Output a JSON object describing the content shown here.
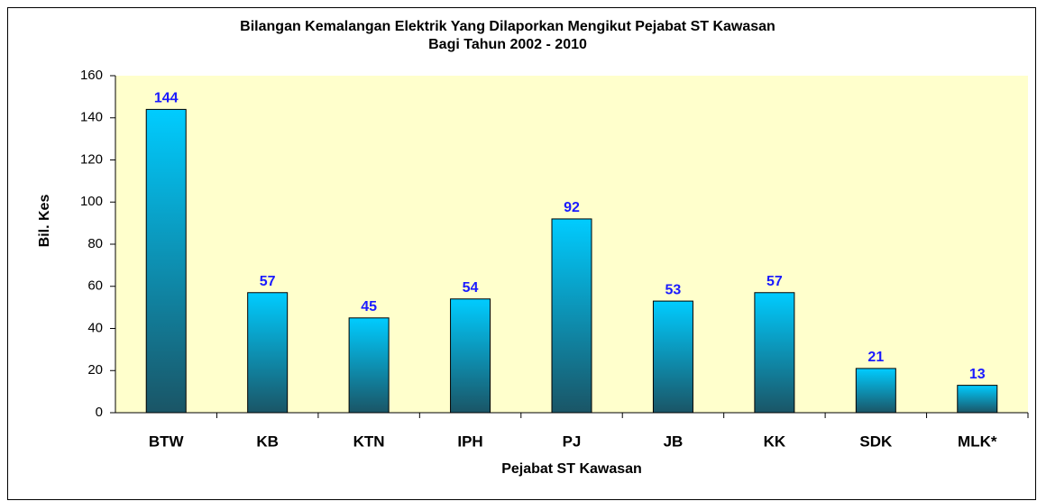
{
  "chart_data": {
    "type": "bar",
    "title": "Bilangan Kemalangan Elektrik Yang Dilaporkan Mengikut Pejabat ST Kawasan",
    "subtitle": "Bagi Tahun 2002 - 2010",
    "x_label": "Pejabat ST Kawasan",
    "y_label": "Bil. Kes",
    "categories": [
      "BTW",
      "KB",
      "KTN",
      "IPH",
      "PJ",
      "JB",
      "KK",
      "SDK",
      "MLK*"
    ],
    "values": [
      144,
      57,
      45,
      54,
      92,
      53,
      57,
      21,
      13
    ],
    "color": "#00ccff",
    "value_label_color": "#1a1aff",
    "plot_background": "#ffffcc",
    "ylim": [
      0,
      160
    ],
    "yticks": [
      0,
      20,
      40,
      60,
      80,
      100,
      120,
      140,
      160
    ],
    "grid": false
  }
}
